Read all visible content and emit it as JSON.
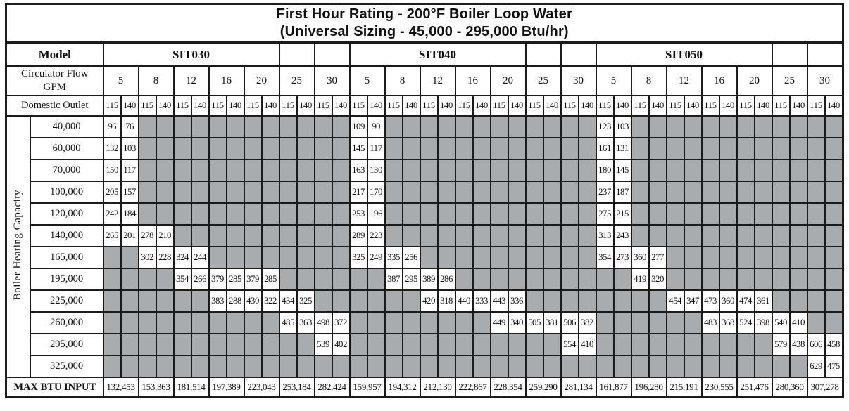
{
  "title": {
    "line1": "First Hour Rating - 200°F Boiler Loop Water",
    "line2": "(Universal Sizing - 45,000 - 295,000 Btu/hr)"
  },
  "labels": {
    "model": "Model",
    "circulator_flow_line1": "Circulator Flow",
    "circulator_flow_line2": "GPM",
    "domestic_outlet": "Domestic Outlet",
    "capacity_axis": "Boiler Heating Capacity",
    "max_btu": "MAX BTU INPUT"
  },
  "colors": {
    "empty_cell": "#a9acae",
    "border": "#1b1b1b",
    "background": "#ffffff",
    "text": "#111111"
  },
  "models": [
    "SIT030",
    "SIT040",
    "SIT050"
  ],
  "gpm_values": [
    "5",
    "8",
    "12",
    "16",
    "20",
    "25",
    "30"
  ],
  "model_label_gpm_span": 5,
  "outlet_temps": [
    "115",
    "140"
  ],
  "capacity_rows": [
    {
      "capacity": "40,000",
      "cells": [
        [
          96,
          76,
          null,
          null,
          null,
          null,
          null,
          null,
          null,
          null,
          null,
          null,
          null,
          null
        ],
        [
          109,
          90,
          null,
          null,
          null,
          null,
          null,
          null,
          null,
          null,
          null,
          null,
          null,
          null
        ],
        [
          123,
          103,
          null,
          null,
          null,
          null,
          null,
          null,
          null,
          null,
          null,
          null,
          null,
          null
        ]
      ]
    },
    {
      "capacity": "60,000",
      "cells": [
        [
          132,
          103,
          null,
          null,
          null,
          null,
          null,
          null,
          null,
          null,
          null,
          null,
          null,
          null
        ],
        [
          145,
          117,
          null,
          null,
          null,
          null,
          null,
          null,
          null,
          null,
          null,
          null,
          null,
          null
        ],
        [
          161,
          131,
          null,
          null,
          null,
          null,
          null,
          null,
          null,
          null,
          null,
          null,
          null,
          null
        ]
      ]
    },
    {
      "capacity": "70,000",
      "cells": [
        [
          150,
          117,
          null,
          null,
          null,
          null,
          null,
          null,
          null,
          null,
          null,
          null,
          null,
          null
        ],
        [
          163,
          130,
          null,
          null,
          null,
          null,
          null,
          null,
          null,
          null,
          null,
          null,
          null,
          null
        ],
        [
          180,
          145,
          null,
          null,
          null,
          null,
          null,
          null,
          null,
          null,
          null,
          null,
          null,
          null
        ]
      ]
    },
    {
      "capacity": "100,000",
      "cells": [
        [
          205,
          157,
          null,
          null,
          null,
          null,
          null,
          null,
          null,
          null,
          null,
          null,
          null,
          null
        ],
        [
          217,
          170,
          null,
          null,
          null,
          null,
          null,
          null,
          null,
          null,
          null,
          null,
          null,
          null
        ],
        [
          237,
          187,
          null,
          null,
          null,
          null,
          null,
          null,
          null,
          null,
          null,
          null,
          null,
          null
        ]
      ]
    },
    {
      "capacity": "120,000",
      "cells": [
        [
          242,
          184,
          null,
          null,
          null,
          null,
          null,
          null,
          null,
          null,
          null,
          null,
          null,
          null
        ],
        [
          253,
          196,
          null,
          null,
          null,
          null,
          null,
          null,
          null,
          null,
          null,
          null,
          null,
          null
        ],
        [
          275,
          215,
          null,
          null,
          null,
          null,
          null,
          null,
          null,
          null,
          null,
          null,
          null,
          null
        ]
      ]
    },
    {
      "capacity": "140,000",
      "cells": [
        [
          265,
          201,
          278,
          210,
          null,
          null,
          null,
          null,
          null,
          null,
          null,
          null,
          null,
          null
        ],
        [
          289,
          223,
          null,
          null,
          null,
          null,
          null,
          null,
          null,
          null,
          null,
          null,
          null,
          null
        ],
        [
          313,
          243,
          null,
          null,
          null,
          null,
          null,
          null,
          null,
          null,
          null,
          null,
          null,
          null
        ]
      ]
    },
    {
      "capacity": "165,000",
      "cells": [
        [
          null,
          null,
          302,
          228,
          324,
          244,
          null,
          null,
          null,
          null,
          null,
          null,
          null,
          null
        ],
        [
          325,
          249,
          335,
          256,
          null,
          null,
          null,
          null,
          null,
          null,
          null,
          null,
          null,
          null
        ],
        [
          354,
          273,
          360,
          277,
          null,
          null,
          null,
          null,
          null,
          null,
          null,
          null,
          null,
          null
        ]
      ]
    },
    {
      "capacity": "195,000",
      "cells": [
        [
          null,
          null,
          null,
          null,
          354,
          266,
          379,
          285,
          379,
          285,
          null,
          null,
          null,
          null
        ],
        [
          null,
          null,
          387,
          295,
          389,
          286,
          null,
          null,
          null,
          null,
          null,
          null,
          null,
          null
        ],
        [
          null,
          null,
          419,
          320,
          null,
          null,
          null,
          null,
          null,
          null,
          null,
          null,
          null,
          null
        ]
      ]
    },
    {
      "capacity": "225,000",
      "cells": [
        [
          null,
          null,
          null,
          null,
          null,
          null,
          383,
          288,
          430,
          322,
          434,
          325,
          null,
          null
        ],
        [
          null,
          null,
          null,
          null,
          420,
          318,
          440,
          333,
          443,
          336,
          null,
          null,
          null,
          null
        ],
        [
          null,
          null,
          null,
          null,
          454,
          347,
          473,
          360,
          474,
          361,
          null,
          null,
          null,
          null
        ]
      ]
    },
    {
      "capacity": "260,000",
      "cells": [
        [
          null,
          null,
          null,
          null,
          null,
          null,
          null,
          null,
          null,
          null,
          485,
          363,
          498,
          372
        ],
        [
          null,
          null,
          null,
          null,
          null,
          null,
          null,
          null,
          449,
          340,
          505,
          381,
          506,
          382
        ],
        [
          null,
          null,
          null,
          null,
          null,
          null,
          483,
          368,
          524,
          398,
          540,
          410,
          null,
          null
        ]
      ]
    },
    {
      "capacity": "295,000",
      "cells": [
        [
          null,
          null,
          null,
          null,
          null,
          null,
          null,
          null,
          null,
          null,
          null,
          null,
          539,
          402
        ],
        [
          null,
          null,
          null,
          null,
          null,
          null,
          null,
          null,
          null,
          null,
          null,
          null,
          554,
          410
        ],
        [
          null,
          null,
          null,
          null,
          null,
          null,
          null,
          null,
          null,
          null,
          579,
          438,
          606,
          458
        ]
      ]
    },
    {
      "capacity": "325,000",
      "cells": [
        [
          null,
          null,
          null,
          null,
          null,
          null,
          null,
          null,
          null,
          null,
          null,
          null,
          null,
          null
        ],
        [
          null,
          null,
          null,
          null,
          null,
          null,
          null,
          null,
          null,
          null,
          null,
          null,
          null,
          null
        ],
        [
          null,
          null,
          null,
          null,
          null,
          null,
          null,
          null,
          null,
          null,
          null,
          null,
          629,
          475
        ]
      ]
    }
  ],
  "max_btu_input": [
    [
      "132,453",
      "153,363",
      "181,514",
      "197,389",
      "223,043",
      "253,184",
      "282,424"
    ],
    [
      "159,957",
      "194,312",
      "212,130",
      "222,867",
      "228,354",
      "259,290",
      "281,134"
    ],
    [
      "161,877",
      "196,280",
      "215,191",
      "230,555",
      "251,476",
      "280,360",
      "307,278"
    ]
  ]
}
